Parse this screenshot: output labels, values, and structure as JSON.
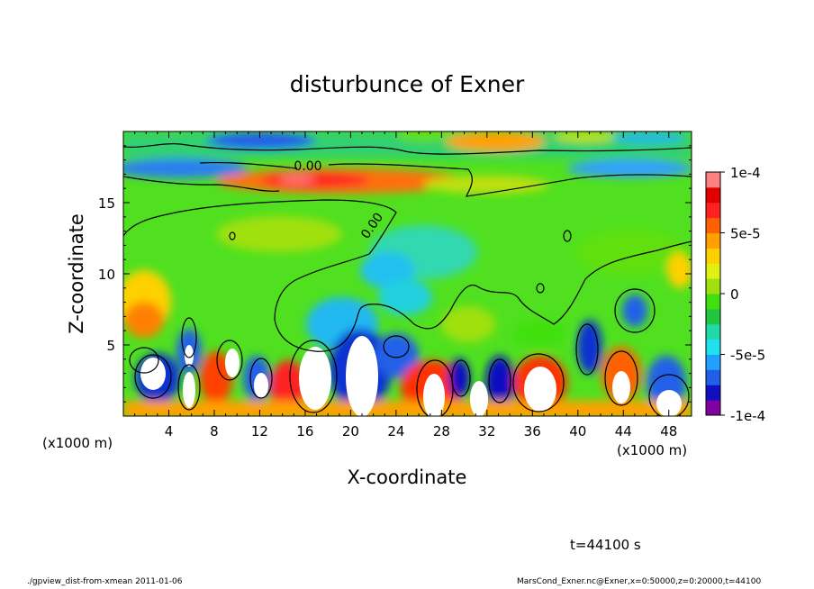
{
  "chart_data": {
    "type": "heatmap",
    "title": "disturbunce of Exner",
    "xlabel": "X-coordinate",
    "ylabel": "Z-coordinate",
    "x_unit": "(x1000 m)",
    "y_unit": "(x1000 m)",
    "xlim": [
      0,
      50
    ],
    "ylim": [
      0,
      20
    ],
    "x_ticks": [
      "4",
      "8",
      "12",
      "16",
      "20",
      "24",
      "28",
      "32",
      "36",
      "40",
      "44",
      "48"
    ],
    "y_ticks": [
      "5",
      "10",
      "15"
    ],
    "colorbar": {
      "range": [
        -0.0001,
        0.0001
      ],
      "tick_labels": [
        "1e-4",
        "5e-5",
        "0",
        "-5e-5",
        "-1e-4"
      ],
      "colors": [
        "#8000a0",
        "#1010c0",
        "#2060e8",
        "#20a0ff",
        "#20e0f0",
        "#20d8a8",
        "#20c840",
        "#40e010",
        "#a0e010",
        "#e0f010",
        "#ffd000",
        "#ffa000",
        "#ff6000",
        "#ff2020",
        "#e00000",
        "#ff8080"
      ]
    },
    "contour_labels": [
      "0.00",
      "0.00"
    ],
    "time_label": "t=44100 s",
    "footer_left": "./gpview_dist-from-xmean  2011-01-06",
    "footer_right": "MarsCond_Exner.nc@Exner,x=0:50000,z=0:20000,t=44100"
  }
}
